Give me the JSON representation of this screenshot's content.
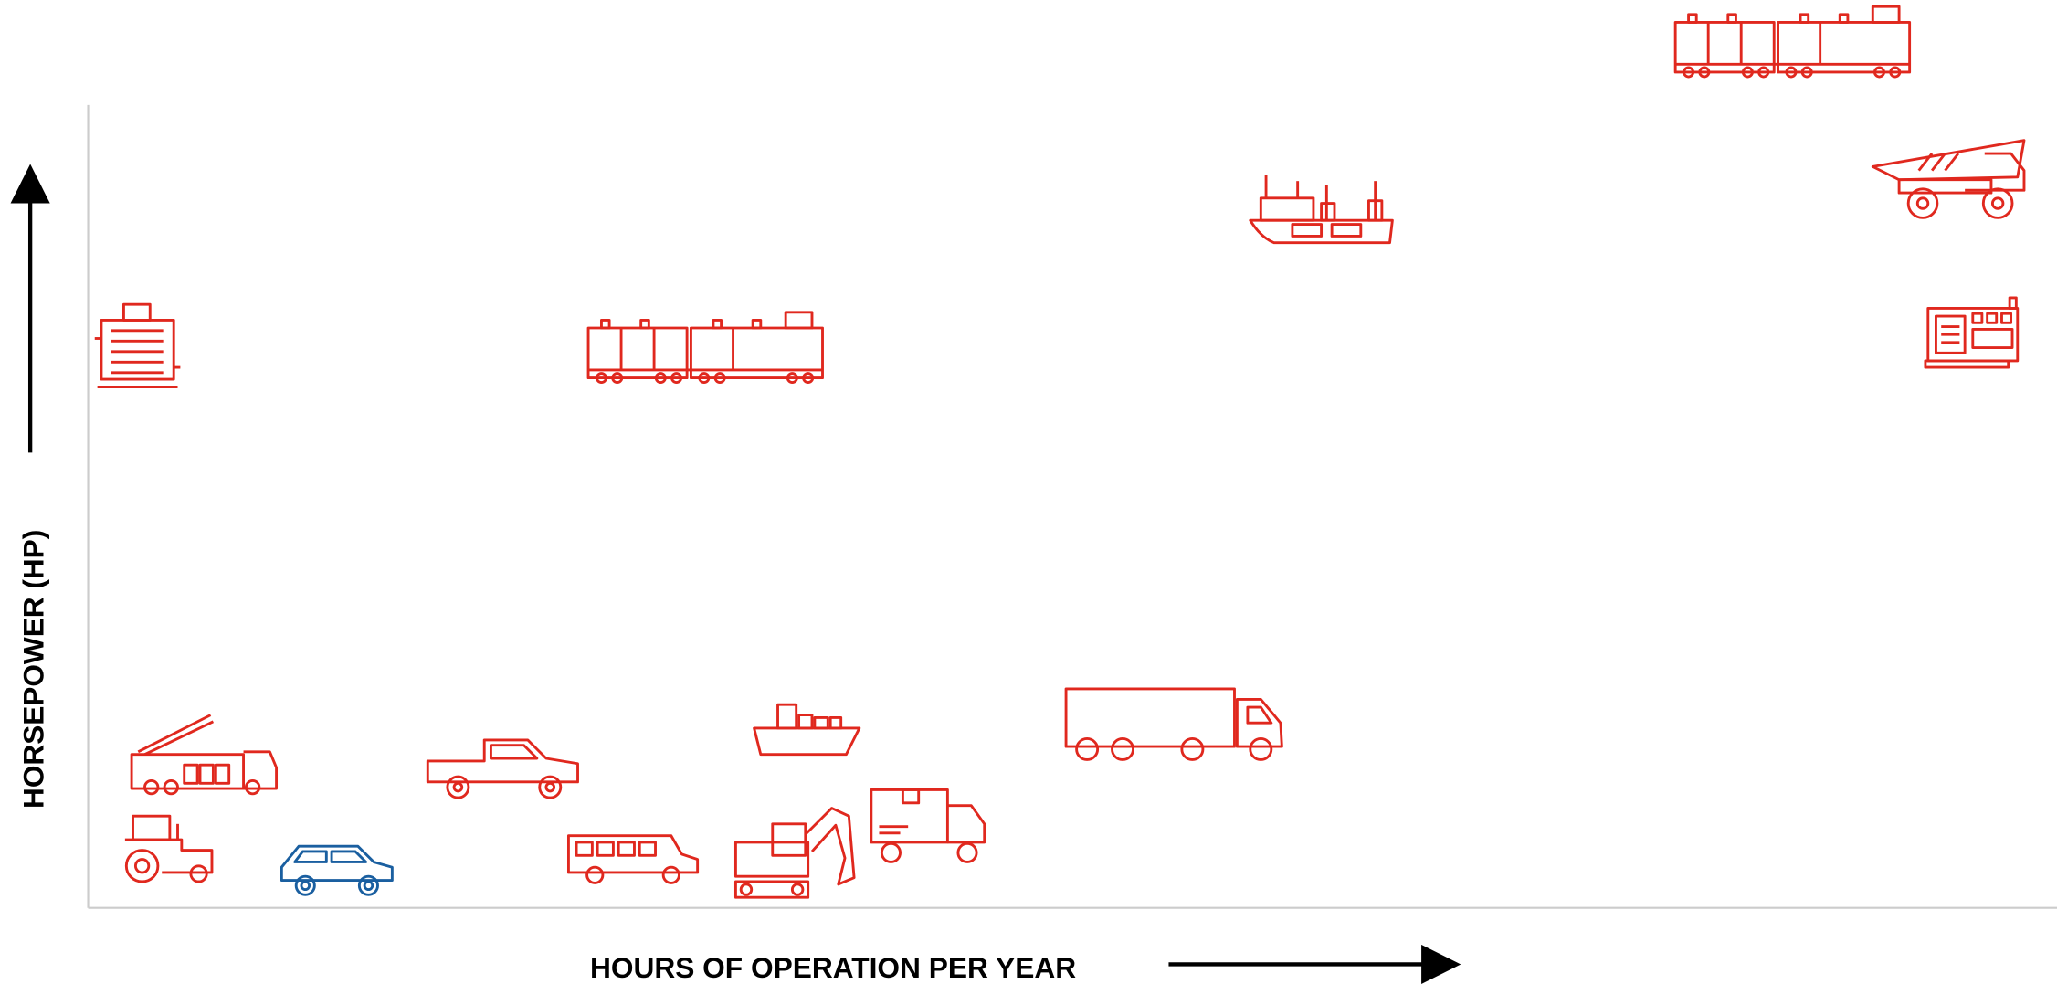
{
  "y_axis_label": "HORSEPOWER (HP)",
  "x_axis_label": "HOURS OF OPERATION PER YEAR"
}
